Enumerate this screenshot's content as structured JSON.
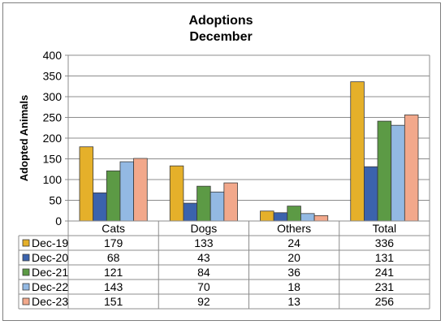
{
  "chart_data": {
    "type": "bar",
    "title": "Adoptions",
    "subtitle": "December",
    "xlabel": "",
    "ylabel": "Adopted Animals",
    "ylim": [
      0,
      400
    ],
    "yticks": [
      0,
      50,
      100,
      150,
      200,
      250,
      300,
      350,
      400
    ],
    "grid": true,
    "legend": "data-table",
    "categories": [
      "Cats",
      "Dogs",
      "Others",
      "Total"
    ],
    "series": [
      {
        "name": "Dec-19",
        "color": "#e5b02a",
        "values": [
          179,
          133,
          24,
          336
        ]
      },
      {
        "name": "Dec-20",
        "color": "#3b63ad",
        "values": [
          68,
          43,
          20,
          131
        ]
      },
      {
        "name": "Dec-21",
        "color": "#5c9a45",
        "values": [
          121,
          84,
          36,
          241
        ]
      },
      {
        "name": "Dec-22",
        "color": "#93b9e3",
        "values": [
          143,
          70,
          18,
          231
        ]
      },
      {
        "name": "Dec-23",
        "color": "#f2a88b",
        "values": [
          151,
          92,
          13,
          256
        ]
      }
    ]
  }
}
